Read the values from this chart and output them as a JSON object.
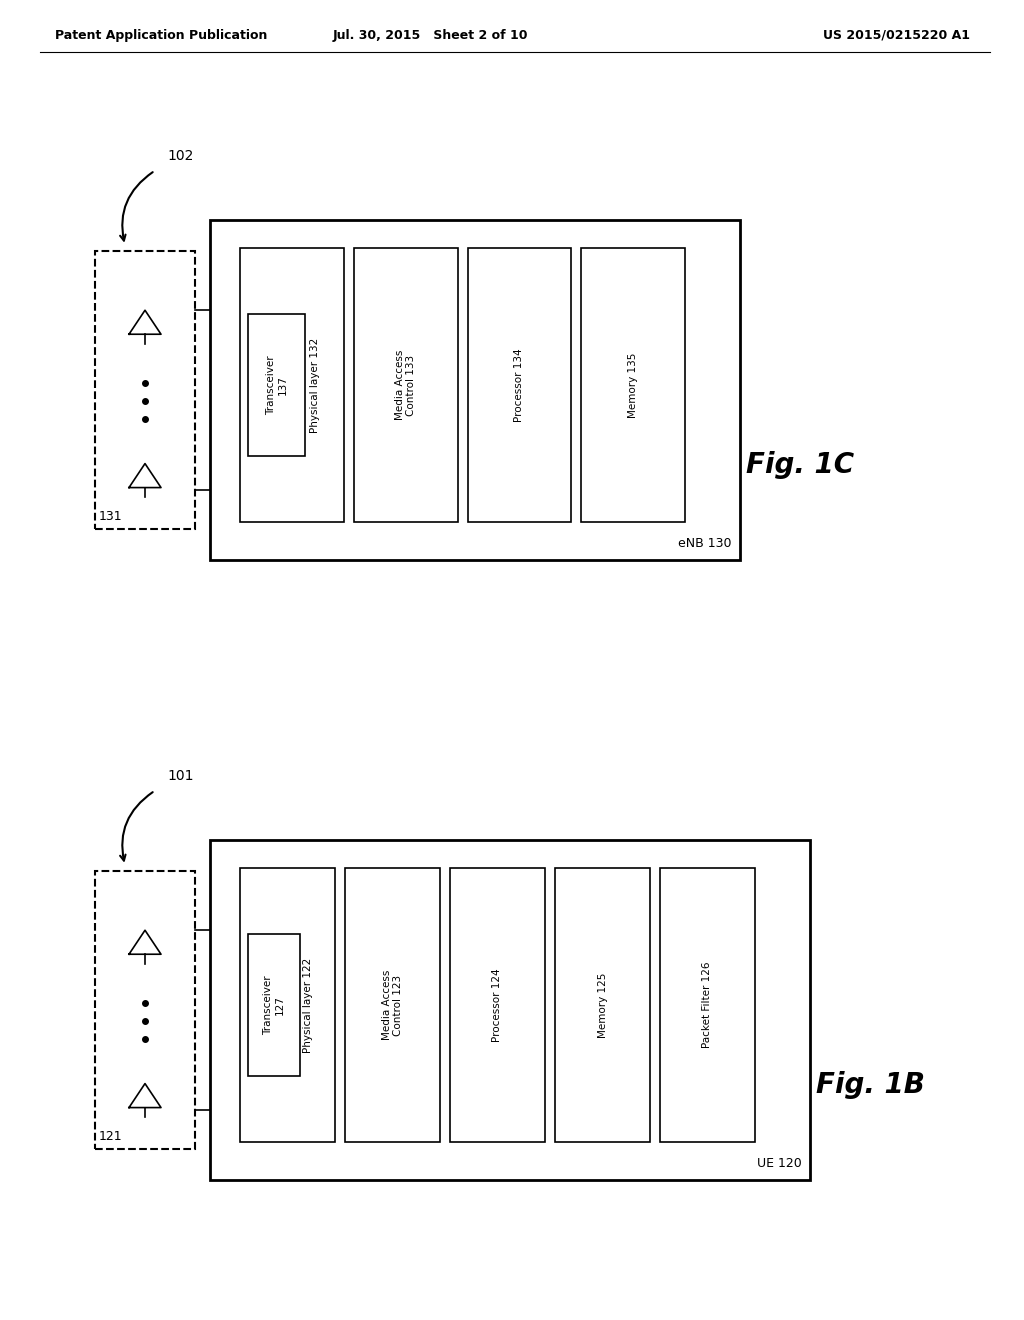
{
  "bg_color": "#ffffff",
  "header_left": "Patent Application Publication",
  "header_mid": "Jul. 30, 2015   Sheet 2 of 10",
  "header_right": "US 2015/0215220 A1",
  "fig_top": {
    "label": "102",
    "device_label": "eNB 130",
    "fig_label": "Fig. 1C",
    "antenna_group_label": "131",
    "boxes": [
      {
        "lines": [
          "Physical layer 132"
        ],
        "sub_lines": [
          "Transceiver",
          "137"
        ]
      },
      {
        "lines": [
          "Media Access",
          "Control 133"
        ],
        "sub_lines": []
      },
      {
        "lines": [
          "Processor 134"
        ],
        "sub_lines": []
      },
      {
        "lines": [
          "Memory 135"
        ],
        "sub_lines": []
      }
    ]
  },
  "fig_bot": {
    "label": "101",
    "device_label": "UE 120",
    "fig_label": "Fig. 1B",
    "antenna_group_label": "121",
    "boxes": [
      {
        "lines": [
          "Physical layer 122"
        ],
        "sub_lines": [
          "Transceiver",
          "127"
        ]
      },
      {
        "lines": [
          "Media Access",
          "Control 123"
        ],
        "sub_lines": []
      },
      {
        "lines": [
          "Processor 124"
        ],
        "sub_lines": []
      },
      {
        "lines": [
          "Memory 125"
        ],
        "sub_lines": []
      },
      {
        "lines": [
          "Packet Filter 126"
        ],
        "sub_lines": []
      }
    ]
  }
}
